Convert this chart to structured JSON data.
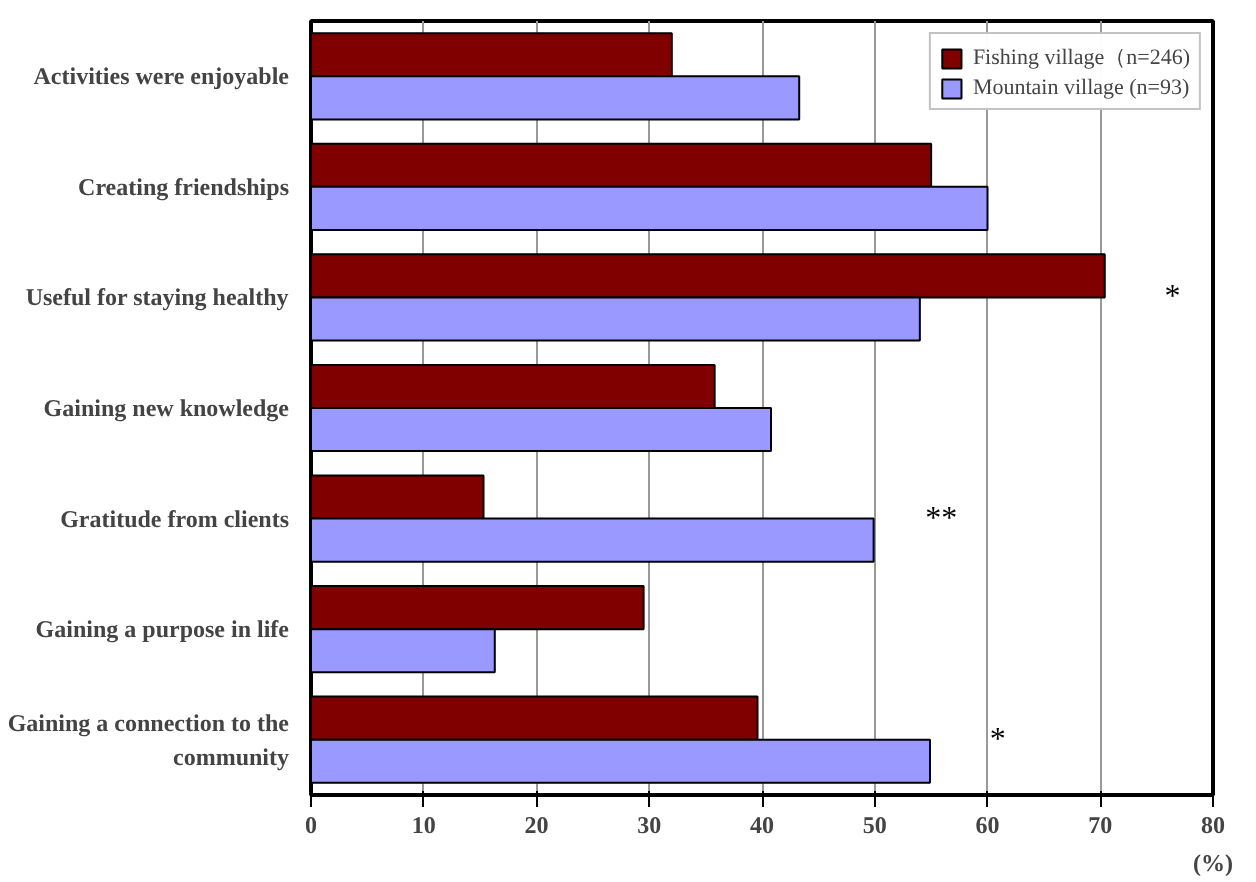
{
  "chart_data": {
    "type": "bar",
    "orientation": "horizontal",
    "categories": [
      "Activities were enjoyable",
      "Creating friendships",
      "Useful for staying healthy",
      "Gaining new knowledge",
      "Gratitude from clients",
      "Gaining a purpose in life",
      "Gaining a connection to the community"
    ],
    "series": [
      {
        "name": "Fishing village（n=246)",
        "color": "#800000",
        "values": [
          32.0,
          55.0,
          70.4,
          35.8,
          15.3,
          29.5,
          39.6
        ]
      },
      {
        "name": "Mountain village (n=93)",
        "color": "#9999ff",
        "values": [
          43.3,
          60.0,
          54.0,
          40.8,
          49.9,
          16.3,
          54.9
        ]
      }
    ],
    "xlim": [
      0,
      80
    ],
    "xticks": [
      0,
      10,
      20,
      30,
      40,
      50,
      60,
      70,
      80
    ],
    "xlabel": "(%)",
    "grid": "x",
    "legend": "top right",
    "annotations": [
      "*",
      "**",
      "*"
    ]
  }
}
